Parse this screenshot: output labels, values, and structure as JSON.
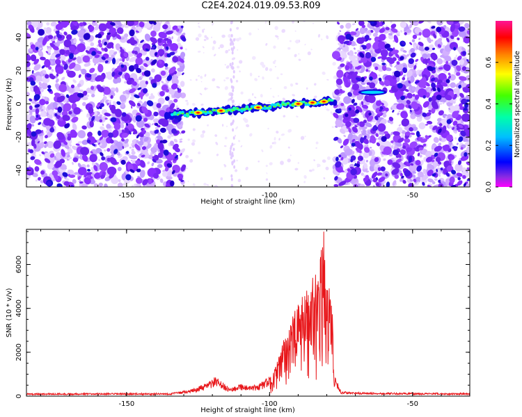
{
  "title": "C2E4.2024.019.09.53.R09",
  "colors": {
    "snr_line": "#e8161a",
    "blob_violet": "#8a30ff",
    "blob_blue": "#1a10d8"
  },
  "chart_data": [
    {
      "type": "heatmap",
      "xlabel": "Height of straight line (km)",
      "ylabel": "Frequency (Hz)",
      "xlim": [
        -185,
        -30
      ],
      "ylim": [
        -50,
        50
      ],
      "x_ticks": [
        -150,
        -100,
        -50
      ],
      "x_tick_labels": [
        "-150",
        "-100",
        "-50"
      ],
      "y_ticks": [
        -40,
        -20,
        0,
        20,
        40
      ],
      "y_tick_labels": [
        "-40",
        "-20",
        "0",
        "20",
        "40"
      ],
      "grid": false,
      "noise_regions_x": [
        [
          -185,
          -130
        ],
        [
          -77,
          -30
        ]
      ],
      "signal_track": {
        "x_start": -136,
        "x_end": -77,
        "freq_start": -7,
        "freq_end": 2,
        "secondary_x": [
          -68,
          -60
        ],
        "secondary_freq": 7,
        "peak_locations_x": [
          -125,
          -117,
          -104,
          -90,
          -85,
          -81
        ]
      },
      "colorbar": {
        "label": "Normalized spectral amplitude",
        "range": [
          0,
          0.8
        ],
        "ticks": [
          0.0,
          0.2,
          0.4,
          0.6
        ],
        "tick_labels": [
          "0.0",
          "0.2",
          "0.4",
          "0.6"
        ]
      }
    },
    {
      "type": "line",
      "xlabel": "Height of straight line (km)",
      "ylabel": "SNR (10 * v/v)",
      "xlim": [
        -185,
        -30
      ],
      "ylim": [
        0,
        7600
      ],
      "x_ticks": [
        -150,
        -100,
        -50
      ],
      "x_tick_labels": [
        "-150",
        "-100",
        "-50"
      ],
      "y_ticks": [
        0,
        2000,
        4000,
        6000
      ],
      "y_tick_labels": [
        "0",
        "2000",
        "4000",
        "6000"
      ],
      "grid": false,
      "envelope": {
        "x": [
          -185,
          -135,
          -128,
          -122,
          -119,
          -117,
          -114,
          -110,
          -107,
          -104,
          -100,
          -98,
          -95,
          -93,
          -90,
          -88,
          -86,
          -84,
          -82,
          -81,
          -80,
          -78,
          -77.5,
          -75,
          -70,
          -60,
          -50,
          -30
        ],
        "y": [
          130,
          140,
          280,
          600,
          900,
          700,
          380,
          600,
          450,
          550,
          900,
          1300,
          2600,
          3400,
          4200,
          4700,
          5200,
          5800,
          6600,
          7500,
          5200,
          4800,
          1000,
          230,
          180,
          160,
          150,
          140
        ]
      }
    }
  ]
}
